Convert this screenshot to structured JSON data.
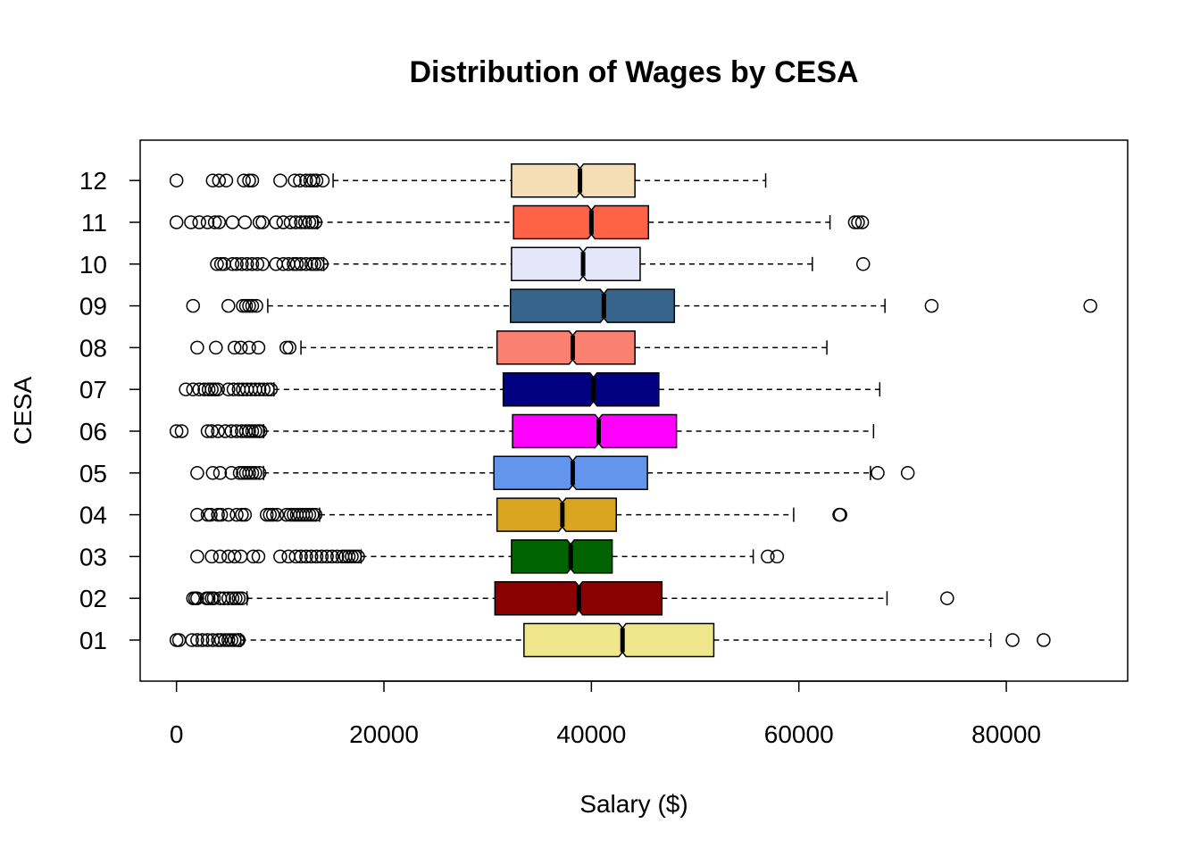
{
  "chart_data": {
    "type": "boxplot",
    "orientation": "horizontal",
    "notched": true,
    "title": "Distribution of Wages by CESA",
    "xlabel": "Salary ($)",
    "ylabel": "CESA",
    "xlim": [
      -3500,
      91700
    ],
    "xticks": [
      0,
      20000,
      40000,
      60000,
      80000
    ],
    "xtick_labels": [
      "0",
      "20000",
      "40000",
      "60000",
      "80000"
    ],
    "grid": false,
    "legend": "none",
    "categories": [
      "01",
      "02",
      "03",
      "04",
      "05",
      "06",
      "07",
      "08",
      "09",
      "10",
      "11",
      "12"
    ],
    "boxes": [
      {
        "category": "01",
        "color": "#F0E68C",
        "whisker_low": 6200,
        "q1": 33500,
        "median": 43000,
        "q3": 51800,
        "whisker_high": 78500,
        "outliers": [
          0,
          250,
          1500,
          2000,
          2500,
          3000,
          3500,
          4000,
          4300,
          4700,
          5000,
          5300,
          5600,
          5900,
          6000,
          80600,
          83600
        ]
      },
      {
        "category": "02",
        "color": "#8B0000",
        "whisker_low": 6800,
        "q1": 30700,
        "median": 38800,
        "q3": 46800,
        "whisker_high": 68500,
        "outliers": [
          1600,
          1800,
          2000,
          2900,
          3100,
          3400,
          3600,
          4200,
          4600,
          5000,
          5400,
          5700,
          6000,
          6300,
          74300
        ]
      },
      {
        "category": "03",
        "color": "#006400",
        "whisker_low": 17800,
        "q1": 32300,
        "median": 38000,
        "q3": 42000,
        "whisker_high": 55600,
        "outliers": [
          2000,
          3400,
          4200,
          5000,
          5600,
          6200,
          7400,
          7900,
          10000,
          10800,
          11500,
          12000,
          12500,
          13000,
          13500,
          14000,
          14500,
          15000,
          15500,
          16000,
          16300,
          16600,
          16900,
          17200,
          17500,
          57000,
          57900
        ]
      },
      {
        "category": "04",
        "color": "#DAA520",
        "whisker_low": 13800,
        "q1": 30900,
        "median": 37200,
        "q3": 42400,
        "whisker_high": 59500,
        "outliers": [
          2000,
          3000,
          3300,
          4000,
          4300,
          5000,
          5800,
          6300,
          6600,
          8700,
          9000,
          9300,
          9700,
          10600,
          11000,
          11300,
          11600,
          11900,
          12200,
          12500,
          12800,
          13100,
          13400,
          63900,
          64000
        ]
      },
      {
        "category": "05",
        "color": "#6495ED",
        "whisker_low": 8400,
        "q1": 30600,
        "median": 38200,
        "q3": 45400,
        "whisker_high": 66900,
        "outliers": [
          2000,
          3500,
          4200,
          5300,
          6100,
          6400,
          6700,
          7000,
          7300,
          7600,
          8000,
          67600,
          70500
        ]
      },
      {
        "category": "06",
        "color": "#FF00FF",
        "whisker_low": 8400,
        "q1": 32400,
        "median": 40700,
        "q3": 48200,
        "whisker_high": 67200,
        "outliers": [
          0,
          500,
          3000,
          3400,
          4000,
          4700,
          5300,
          5800,
          6300,
          6700,
          7000,
          7300,
          7600,
          7900,
          8100
        ]
      },
      {
        "category": "07",
        "color": "#000080",
        "whisker_low": 9400,
        "q1": 31500,
        "median": 40200,
        "q3": 46500,
        "whisker_high": 67800,
        "outliers": [
          900,
          1600,
          2200,
          2700,
          3100,
          3400,
          3700,
          4000,
          5000,
          5500,
          6000,
          6400,
          6800,
          7200,
          7600,
          8000,
          8400,
          8800,
          9100
        ]
      },
      {
        "category": "08",
        "color": "#FA8072",
        "whisker_low": 12000,
        "q1": 30900,
        "median": 38200,
        "q3": 44200,
        "whisker_high": 62700,
        "outliers": [
          2000,
          3800,
          5600,
          6200,
          7000,
          7900,
          10600,
          10900
        ]
      },
      {
        "category": "09",
        "color": "#36648B",
        "whisker_low": 8800,
        "q1": 32200,
        "median": 41200,
        "q3": 48000,
        "whisker_high": 68300,
        "outliers": [
          1600,
          5000,
          6400,
          6700,
          7000,
          7300,
          7700,
          72800,
          88100
        ]
      },
      {
        "category": "10",
        "color": "#E6E6FA",
        "whisker_low": 14200,
        "q1": 32300,
        "median": 39200,
        "q3": 44700,
        "whisker_high": 61300,
        "outliers": [
          3900,
          4300,
          4600,
          5400,
          5800,
          6300,
          6800,
          7300,
          7800,
          8300,
          9600,
          10300,
          10800,
          11300,
          11600,
          12000,
          12500,
          13000,
          13300,
          13600,
          14000,
          66200
        ]
      },
      {
        "category": "11",
        "color": "#FF6347",
        "whisker_low": 13600,
        "q1": 32500,
        "median": 40000,
        "q3": 45500,
        "whisker_high": 63000,
        "outliers": [
          0,
          1400,
          2200,
          3000,
          3700,
          4100,
          5400,
          6600,
          8000,
          8300,
          9600,
          10300,
          11000,
          11500,
          12000,
          12400,
          12800,
          13100,
          13400,
          65400,
          65700,
          66100
        ]
      },
      {
        "category": "12",
        "color": "#F5DEB3",
        "whisker_low": 15100,
        "q1": 32300,
        "median": 38900,
        "q3": 44200,
        "whisker_high": 56800,
        "outliers": [
          0,
          3500,
          4100,
          4800,
          6500,
          7000,
          7300,
          10000,
          11400,
          11900,
          12500,
          12900,
          13200,
          13500,
          14100
        ]
      }
    ]
  }
}
